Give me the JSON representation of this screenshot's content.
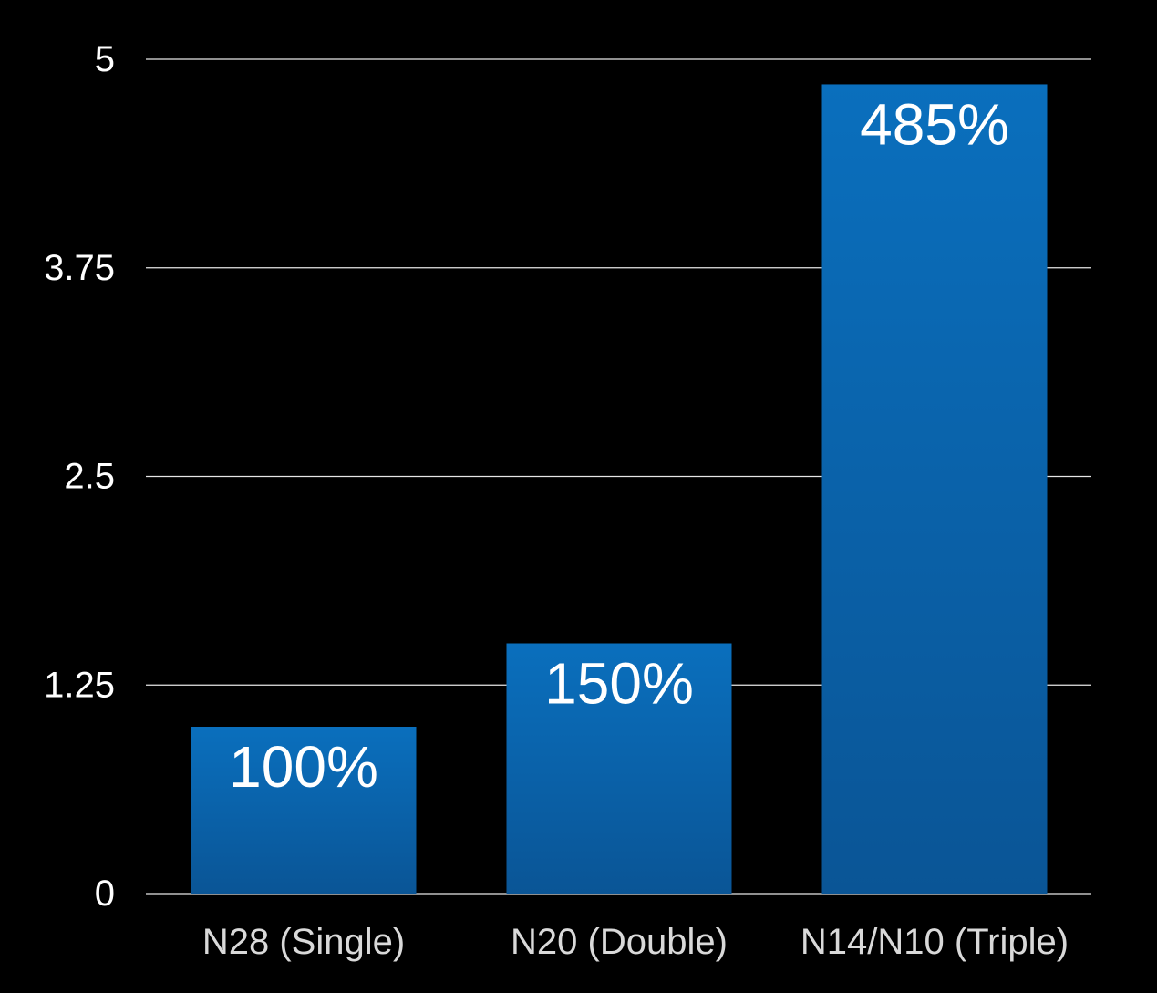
{
  "chart_data": {
    "type": "bar",
    "categories": [
      "N28 (Single)",
      "N20 (Double)",
      "N14/N10 (Triple)"
    ],
    "values": [
      1.0,
      1.5,
      4.85
    ],
    "data_labels": [
      "100%",
      "150%",
      "485%"
    ],
    "title": "",
    "xlabel": "",
    "ylabel": "",
    "ylim": [
      0,
      5
    ],
    "yticks": [
      0,
      1.25,
      2.5,
      3.75,
      5
    ],
    "ytick_labels": [
      "0",
      "1.25",
      "2.5",
      "3.75",
      "5"
    ],
    "grid": true,
    "legend": "none"
  },
  "colors": {
    "background": "#000000",
    "bar_top": "#0a6fbd",
    "bar_bottom": "#0a5596",
    "grid": "#e6e6e6",
    "text": "#ffffff",
    "category_text": "#d9d9d9"
  }
}
